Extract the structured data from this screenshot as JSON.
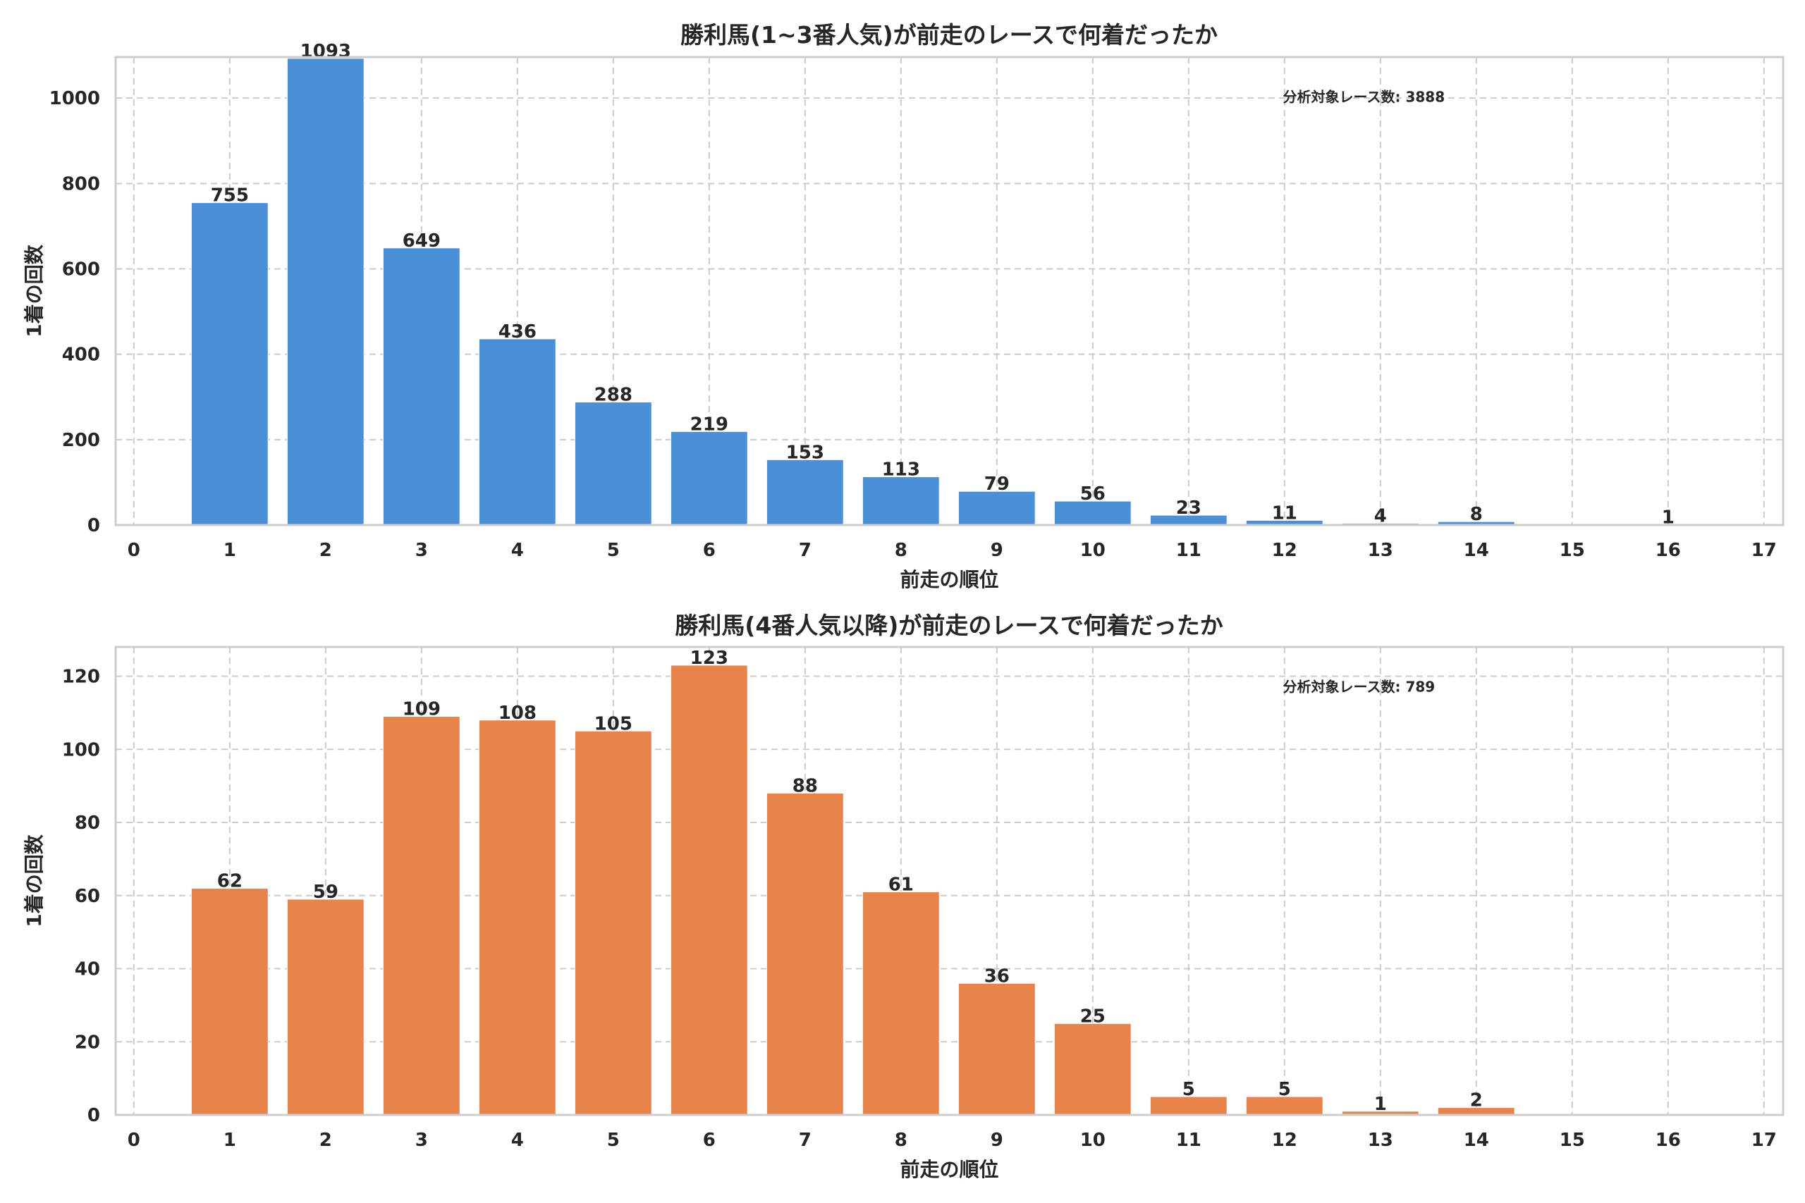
{
  "chart_data": [
    {
      "type": "bar",
      "title": "勝利馬(1~3番人気)が前走のレースで何着だったか",
      "xlabel": "前走の順位",
      "ylabel": "1着の回数",
      "color": "#4a90d9",
      "categories": [
        1,
        2,
        3,
        4,
        5,
        6,
        7,
        8,
        9,
        10,
        11,
        12,
        13,
        14,
        16
      ],
      "values": [
        755,
        1093,
        649,
        436,
        288,
        219,
        153,
        113,
        79,
        56,
        23,
        11,
        4,
        8,
        1
      ],
      "value_labels": [
        "755",
        "1093",
        "649",
        "436",
        "288",
        "219",
        "153",
        "113",
        "79",
        "56",
        "23",
        "11",
        "4",
        "8",
        "1"
      ],
      "xlim": [
        -0.19,
        17.2
      ],
      "ylim": [
        0,
        1096
      ],
      "xticks": [
        "0",
        "1",
        "2",
        "3",
        "4",
        "5",
        "6",
        "7",
        "8",
        "9",
        "10",
        "11",
        "12",
        "13",
        "14",
        "15",
        "16",
        "17"
      ],
      "yticks": [
        "0",
        "200",
        "400",
        "600",
        "800",
        "1000"
      ],
      "grid": true,
      "annotation": "分析対象レース数: 3888"
    },
    {
      "type": "bar",
      "title": "勝利馬(4番人気以降)が前走のレースで何着だったか",
      "xlabel": "前走の順位",
      "ylabel": "1着の回数",
      "color": "#e8844a",
      "categories": [
        1,
        2,
        3,
        4,
        5,
        6,
        7,
        8,
        9,
        10,
        11,
        12,
        13,
        14
      ],
      "values": [
        62,
        59,
        109,
        108,
        105,
        123,
        88,
        61,
        36,
        25,
        5,
        5,
        1,
        2
      ],
      "value_labels": [
        "62",
        "59",
        "109",
        "108",
        "105",
        "123",
        "88",
        "61",
        "36",
        "25",
        "5",
        "5",
        "1",
        "2"
      ],
      "xlim": [
        -0.19,
        17.2
      ],
      "ylim": [
        0,
        128
      ],
      "xticks": [
        "0",
        "1",
        "2",
        "3",
        "4",
        "5",
        "6",
        "7",
        "8",
        "9",
        "10",
        "11",
        "12",
        "13",
        "14",
        "15",
        "16",
        "17"
      ],
      "yticks": [
        "0",
        "20",
        "40",
        "60",
        "80",
        "100",
        "120"
      ],
      "grid": true,
      "annotation": "分析対象レース数: 789"
    }
  ]
}
